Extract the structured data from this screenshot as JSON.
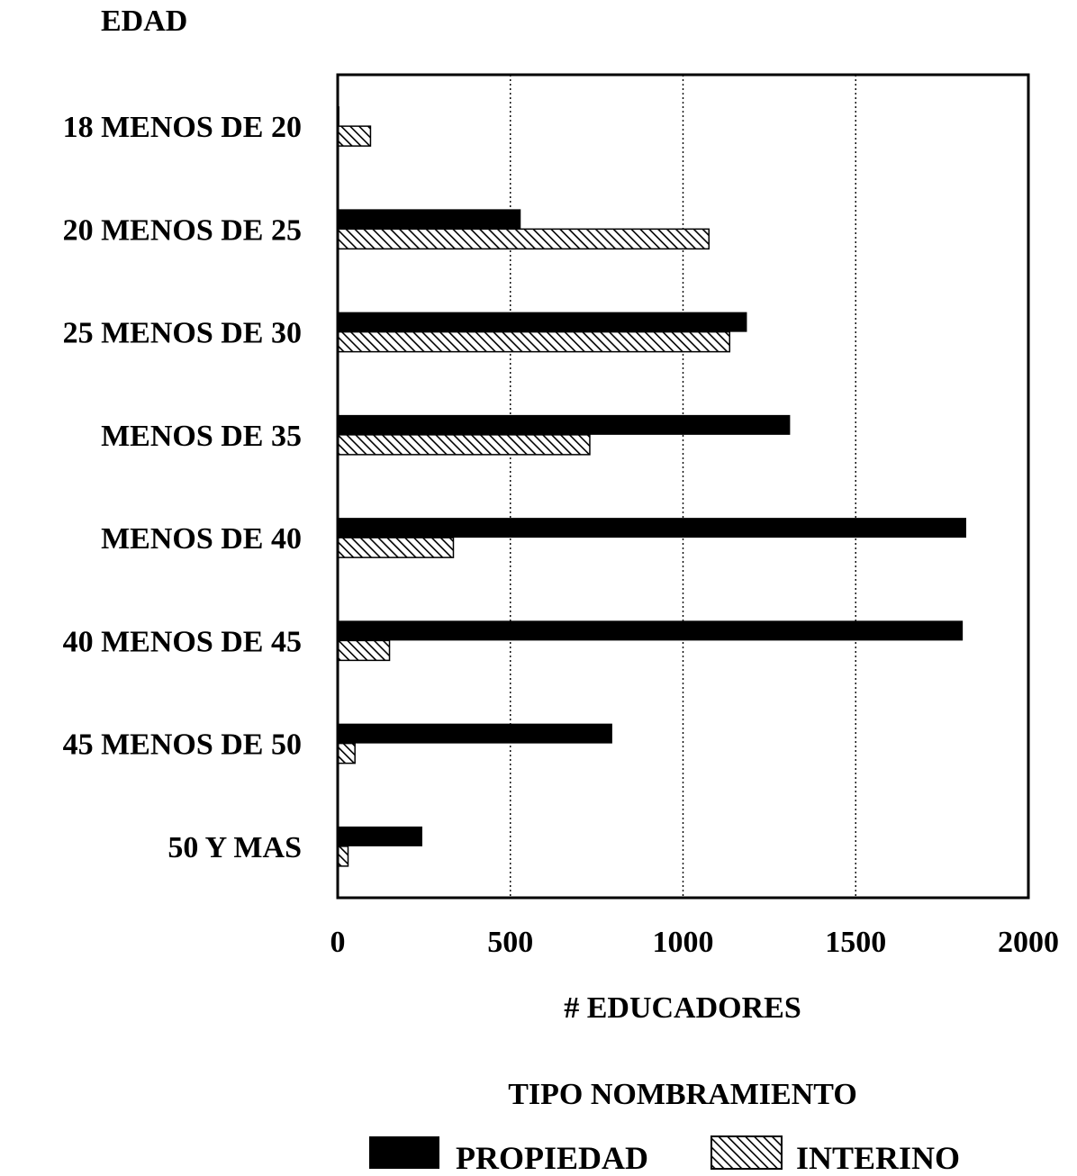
{
  "chart_data": {
    "type": "bar",
    "orientation": "horizontal",
    "ylabel": "EDAD",
    "xlabel": "# EDUCADORES",
    "categories": [
      "18 MENOS DE 20",
      "20 MENOS DE 25",
      "25 MENOS DE 30",
      "MENOS DE 35",
      "MENOS DE 40",
      "40 MENOS DE 45",
      "45 MENOS DE 50",
      "50 Y MAS"
    ],
    "series": [
      {
        "name": "PROPIEDAD",
        "pattern": "solid",
        "color": "#000000",
        "values": [
          5,
          530,
          1185,
          1310,
          1820,
          1810,
          795,
          245
        ]
      },
      {
        "name": "INTERINO",
        "pattern": "hatch",
        "color": "#000000",
        "values": [
          95,
          1075,
          1135,
          730,
          335,
          150,
          50,
          30
        ]
      }
    ],
    "xlim": [
      0,
      2000
    ],
    "xticks": [
      "0",
      "500",
      "1000",
      "1500",
      "2000"
    ],
    "grid": "vertical-dotted",
    "legend": {
      "title": "TIPO NOMBRAMIENTO",
      "position": "bottom-center"
    }
  }
}
